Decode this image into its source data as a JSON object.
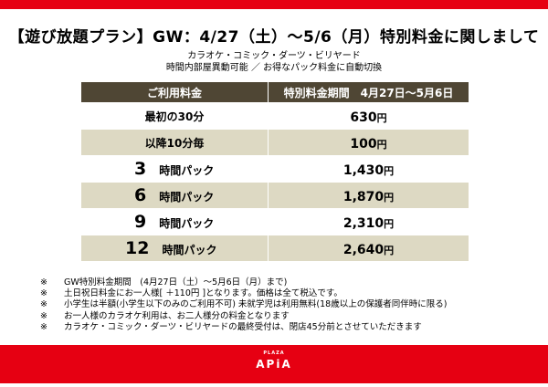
{
  "title": "【遊び放題プラン】GW：4/27（土）～5/6（月）特別料金に関しまして",
  "subtitle1": "カラオケ・コミック・ダーツ・ビリヤード",
  "subtitle2": "時間内部屋異動可能 ／ お得なパック料金に自動切換",
  "table": {
    "headers": [
      "ご利用料金",
      "特別料金期間　4月27日～5月6日"
    ],
    "rows": [
      {
        "label": "最初の30分",
        "price": "630",
        "unit": "円"
      },
      {
        "label": "以降10分毎",
        "price": "100",
        "unit": "円"
      },
      {
        "num": "3",
        "label": "時間パック",
        "price": "1,430",
        "unit": "円"
      },
      {
        "num": "6",
        "label": "時間パック",
        "price": "1,870",
        "unit": "円"
      },
      {
        "num": "9",
        "label": "時間パック",
        "price": "2,310",
        "unit": "円"
      },
      {
        "num": "12",
        "label": "時間パック",
        "price": "2,640",
        "unit": "円"
      }
    ]
  },
  "notes": {
    "mark": "※",
    "lines": [
      "GW特別料金期間　(4月27日（土）～5月6日（月）まで)",
      "土日祝日料金にお一人様[ ＋110円 ]となります。価格は全て税込です。",
      "小学生は半額(小学生以下のみのご利用不可) 未就学児は利用無料(18歳以上の保護者同伴時に限る)",
      "お一人様のカラオケ利用は、お二人様分の料金となります",
      "カラオケ・コミック・ダーツ・ビリヤードの最終受付は、閉店45分前とさせていただきます"
    ]
  },
  "logo": {
    "small": "PLAZA",
    "main": "APiA"
  },
  "colors": {
    "red": "#e60012",
    "header": "#4f4634",
    "stripe": "#ddd9c3"
  }
}
